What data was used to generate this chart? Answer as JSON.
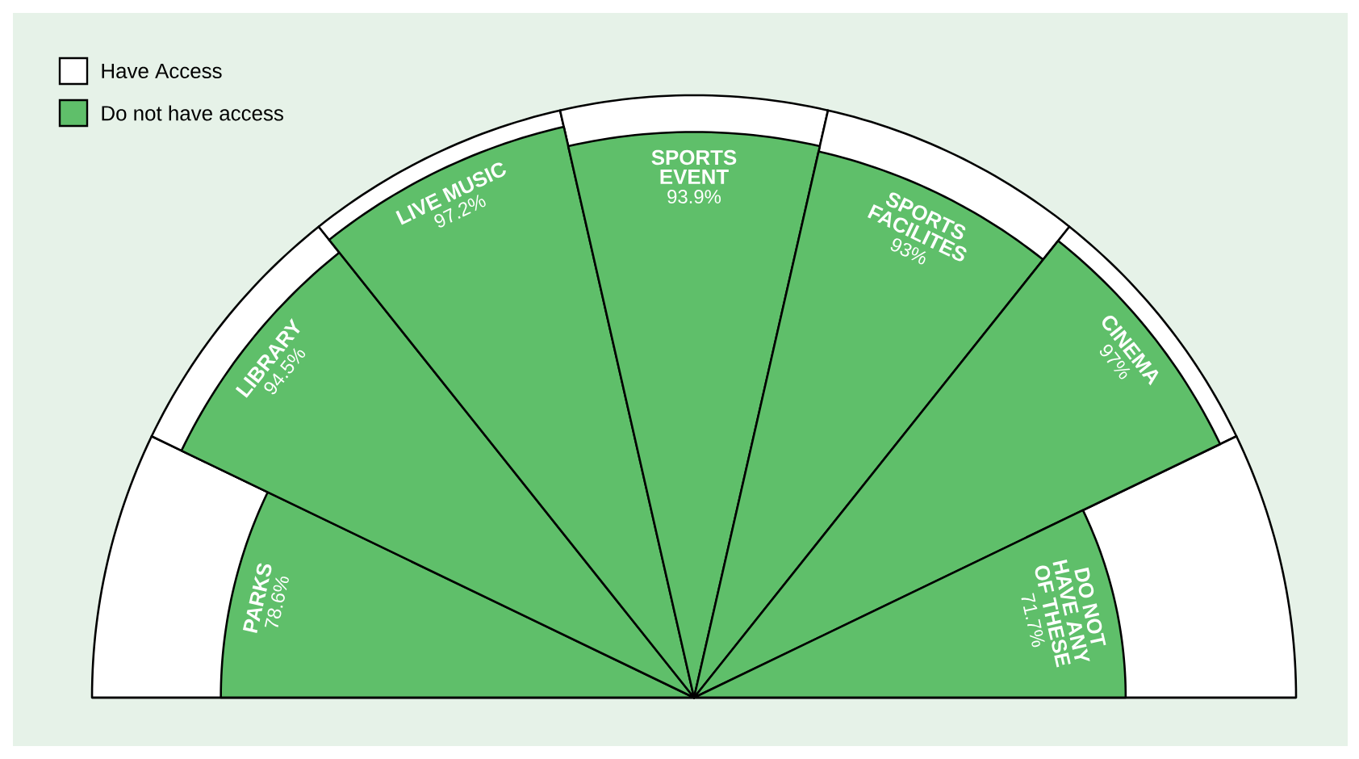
{
  "chart_data": {
    "type": "other",
    "categories": [
      "PARKS",
      "LIBRARY",
      "LIVE MUSIC",
      "SPORTS EVENT",
      "SPORTS FACILITES",
      "CINEMA",
      "DO NOT HAVE ANY OF THESE"
    ],
    "series": [
      {
        "name": "Do not have access",
        "color": "#5fbf6a",
        "values": [
          78.6,
          94.5,
          97.2,
          93.9,
          93,
          97,
          71.7
        ],
        "value_labels": [
          "78.6%",
          "94.5%",
          "97.2%",
          "93.9%",
          "93%",
          "97%",
          "71.7%"
        ]
      }
    ],
    "annotations": [
      "Have Access"
    ],
    "legend": "top left"
  }
}
